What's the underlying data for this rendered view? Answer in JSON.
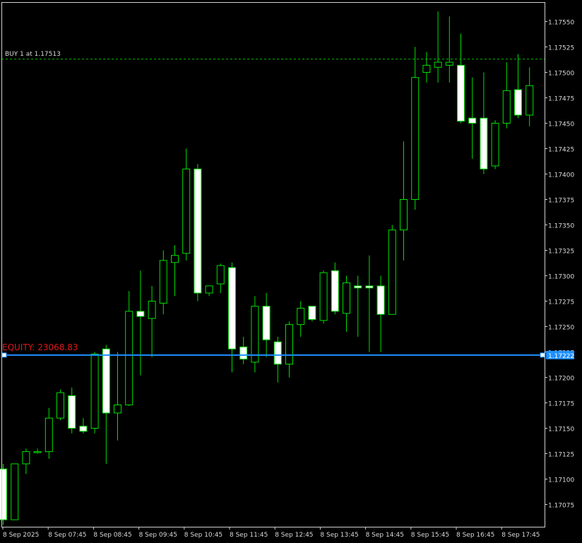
{
  "chart_data": {
    "type": "candlestick",
    "price_axis": {
      "ylim": [
        1.17055,
        1.17565
      ],
      "ticks": [
        "1.17075",
        "1.17100",
        "1.17125",
        "1.17150",
        "1.17175",
        "1.17200",
        "1.17225",
        "1.17250",
        "1.17275",
        "1.17300",
        "1.17325",
        "1.17350",
        "1.17375",
        "1.17400",
        "1.17425",
        "1.17450",
        "1.17475",
        "1.17500",
        "1.17525",
        "1.17550"
      ],
      "current_price_label": "1.17222"
    },
    "time_axis": {
      "labels": [
        "8 Sep 2025",
        "8 Sep 07:45",
        "8 Sep 08:45",
        "8 Sep 09:45",
        "8 Sep 10:45",
        "8 Sep 11:45",
        "8 Sep 12:45",
        "8 Sep 13:45",
        "8 Sep 14:45",
        "8 Sep 15:45",
        "8 Sep 16:45",
        "8 Sep 17:45"
      ]
    },
    "levels": {
      "buy_price": 1.17513,
      "buy_label": "BUY 1 at 1.17513",
      "equity_price": 1.17222,
      "equity_label": "EQUITY: 23068.83"
    },
    "candles": [
      {
        "o": 1.1711,
        "h": 1.17115,
        "l": 1.17055,
        "c": 1.1706
      },
      {
        "o": 1.1706,
        "h": 1.17115,
        "l": 1.1706,
        "c": 1.17115
      },
      {
        "o": 1.17115,
        "h": 1.1713,
        "l": 1.17105,
        "c": 1.17127
      },
      {
        "o": 1.17126,
        "h": 1.1713,
        "l": 1.17125,
        "c": 1.17127
      },
      {
        "o": 1.17127,
        "h": 1.1717,
        "l": 1.1712,
        "c": 1.1716
      },
      {
        "o": 1.1716,
        "h": 1.17188,
        "l": 1.17158,
        "c": 1.17185
      },
      {
        "o": 1.17182,
        "h": 1.1719,
        "l": 1.17145,
        "c": 1.1715
      },
      {
        "o": 1.17152,
        "h": 1.1716,
        "l": 1.17145,
        "c": 1.17147
      },
      {
        "o": 1.1715,
        "h": 1.17225,
        "l": 1.17145,
        "c": 1.17223
      },
      {
        "o": 1.17228,
        "h": 1.17232,
        "l": 1.17115,
        "c": 1.17165
      },
      {
        "o": 1.17165,
        "h": 1.17225,
        "l": 1.17138,
        "c": 1.17173
      },
      {
        "o": 1.17173,
        "h": 1.17285,
        "l": 1.17172,
        "c": 1.17265
      },
      {
        "o": 1.17265,
        "h": 1.17305,
        "l": 1.17202,
        "c": 1.1726
      },
      {
        "o": 1.17258,
        "h": 1.1729,
        "l": 1.1722,
        "c": 1.17275
      },
      {
        "o": 1.17273,
        "h": 1.17325,
        "l": 1.17262,
        "c": 1.17315
      },
      {
        "o": 1.17313,
        "h": 1.1733,
        "l": 1.1728,
        "c": 1.1732
      },
      {
        "o": 1.17322,
        "h": 1.17425,
        "l": 1.17315,
        "c": 1.17405
      },
      {
        "o": 1.17405,
        "h": 1.1741,
        "l": 1.17275,
        "c": 1.17283
      },
      {
        "o": 1.17283,
        "h": 1.1729,
        "l": 1.1728,
        "c": 1.1729
      },
      {
        "o": 1.17292,
        "h": 1.17312,
        "l": 1.17283,
        "c": 1.1731
      },
      {
        "o": 1.17308,
        "h": 1.17313,
        "l": 1.17205,
        "c": 1.17228
      },
      {
        "o": 1.1723,
        "h": 1.1724,
        "l": 1.17213,
        "c": 1.17218
      },
      {
        "o": 1.17215,
        "h": 1.1728,
        "l": 1.17205,
        "c": 1.1727
      },
      {
        "o": 1.1727,
        "h": 1.17283,
        "l": 1.1722,
        "c": 1.17237
      },
      {
        "o": 1.17235,
        "h": 1.1724,
        "l": 1.17195,
        "c": 1.17213
      },
      {
        "o": 1.17213,
        "h": 1.17255,
        "l": 1.172,
        "c": 1.17252
      },
      {
        "o": 1.17252,
        "h": 1.17275,
        "l": 1.1724,
        "c": 1.17268
      },
      {
        "o": 1.1727,
        "h": 1.1727,
        "l": 1.17255,
        "c": 1.17257
      },
      {
        "o": 1.17256,
        "h": 1.17305,
        "l": 1.17253,
        "c": 1.17303
      },
      {
        "o": 1.17305,
        "h": 1.17313,
        "l": 1.17262,
        "c": 1.17265
      },
      {
        "o": 1.17263,
        "h": 1.173,
        "l": 1.17245,
        "c": 1.17293
      },
      {
        "o": 1.1729,
        "h": 1.173,
        "l": 1.1724,
        "c": 1.17288
      },
      {
        "o": 1.1729,
        "h": 1.1732,
        "l": 1.17225,
        "c": 1.17288
      },
      {
        "o": 1.1729,
        "h": 1.173,
        "l": 1.17225,
        "c": 1.17262
      },
      {
        "o": 1.17262,
        "h": 1.1735,
        "l": 1.17262,
        "c": 1.17345
      },
      {
        "o": 1.17345,
        "h": 1.17432,
        "l": 1.17315,
        "c": 1.17375
      },
      {
        "o": 1.17375,
        "h": 1.17525,
        "l": 1.17365,
        "c": 1.17495
      },
      {
        "o": 1.175,
        "h": 1.1752,
        "l": 1.1749,
        "c": 1.17507
      },
      {
        "o": 1.17505,
        "h": 1.1756,
        "l": 1.1749,
        "c": 1.1751
      },
      {
        "o": 1.17507,
        "h": 1.17555,
        "l": 1.1749,
        "c": 1.1751
      },
      {
        "o": 1.17507,
        "h": 1.17538,
        "l": 1.1745,
        "c": 1.17452
      },
      {
        "o": 1.17455,
        "h": 1.17495,
        "l": 1.17415,
        "c": 1.1745
      },
      {
        "o": 1.17455,
        "h": 1.175,
        "l": 1.174,
        "c": 1.17405
      },
      {
        "o": 1.17408,
        "h": 1.17453,
        "l": 1.17405,
        "c": 1.1745
      },
      {
        "o": 1.1745,
        "h": 1.1751,
        "l": 1.17445,
        "c": 1.17482
      },
      {
        "o": 1.17483,
        "h": 1.17518,
        "l": 1.17455,
        "c": 1.17458
      },
      {
        "o": 1.17458,
        "h": 1.17505,
        "l": 1.17447,
        "c": 1.17487
      }
    ]
  }
}
